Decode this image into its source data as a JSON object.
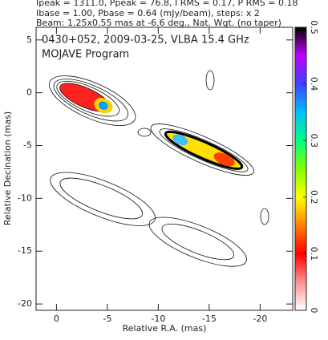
{
  "header": [
    "Ipeak = 1311.0, Ppeak = 76.8, I RMS = 0.17, P RMS = 0.18",
    "Ibase = 1.00, Pbase = 0.64 (mJy/beam), steps: x 2",
    "Beam: 1.25x0.55 mas at -6.6 deg., Nat. Wgt. (no taper)"
  ],
  "chart_data": {
    "type": "contour",
    "title": "0430+052, 2009-03-25, VLBA 15.4 GHz",
    "subtitle": "MOJAVE Program",
    "xlabel": "Relative R.A. (mas)",
    "ylabel": "Relative Decination (mas)",
    "xlim": [
      2,
      -23.2
    ],
    "xticks": [
      0,
      -5,
      -10,
      -15,
      -20
    ],
    "ylim": [
      -20.6,
      6.2
    ],
    "yticks": [
      5,
      0,
      -5,
      -10,
      -15,
      -20
    ],
    "clim": [
      0,
      0.5
    ],
    "cticks": [
      0,
      0.1,
      0.2,
      0.3,
      0.4,
      0.5
    ]
  }
}
